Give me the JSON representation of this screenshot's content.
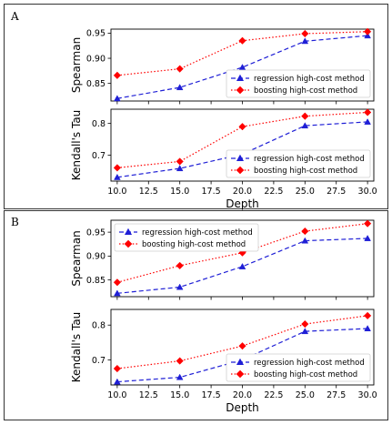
{
  "figure": {
    "panels": [
      {
        "letter": "A"
      },
      {
        "letter": "B"
      }
    ]
  },
  "colors": {
    "regression": "#1f1fd6",
    "boosting": "#ff0000"
  },
  "chart_data": [
    {
      "panel": "A",
      "type": "line",
      "ylabel": "Spearman",
      "xlabel": "",
      "xlim": [
        9.5,
        30.5
      ],
      "ylim": [
        0.815,
        0.958
      ],
      "xticks": [
        "10.0",
        "12.5",
        "15.0",
        "17.5",
        "20.0",
        "22.5",
        "25.0",
        "27.5",
        "30.0"
      ],
      "yticks": [
        "0.85",
        "0.90",
        "0.95"
      ],
      "show_xticklabels": false,
      "legend_loc": "lower-right",
      "x": [
        10,
        15,
        20,
        25,
        30
      ],
      "series": [
        {
          "name": "regression high-cost method",
          "style": "dashed",
          "marker": "triangle",
          "values": [
            0.82,
            0.842,
            0.882,
            0.934,
            0.945
          ]
        },
        {
          "name": "boosting high-cost method",
          "style": "dotted",
          "marker": "diamond",
          "values": [
            0.866,
            0.879,
            0.935,
            0.949,
            0.953
          ]
        }
      ]
    },
    {
      "panel": "A",
      "type": "line",
      "ylabel": "Kendall's Tau",
      "xlabel": "Depth",
      "xlim": [
        9.5,
        30.5
      ],
      "ylim": [
        0.618,
        0.845
      ],
      "xticks": [
        "10.0",
        "12.5",
        "15.0",
        "17.5",
        "20.0",
        "22.5",
        "25.0",
        "27.5",
        "30.0"
      ],
      "yticks": [
        "0.7",
        "0.8"
      ],
      "show_xticklabels": true,
      "legend_loc": "lower-right",
      "x": [
        10,
        15,
        20,
        25,
        30
      ],
      "series": [
        {
          "name": "regression high-cost method",
          "style": "dashed",
          "marker": "triangle",
          "values": [
            0.63,
            0.658,
            0.703,
            0.793,
            0.805
          ]
        },
        {
          "name": "boosting high-cost method",
          "style": "dotted",
          "marker": "diamond",
          "values": [
            0.66,
            0.68,
            0.79,
            0.823,
            0.835
          ]
        }
      ]
    },
    {
      "panel": "B",
      "type": "line",
      "ylabel": "Spearman",
      "xlabel": "",
      "xlim": [
        9.5,
        30.5
      ],
      "ylim": [
        0.815,
        0.975
      ],
      "xticks": [
        "10.0",
        "12.5",
        "15.0",
        "17.5",
        "20.0",
        "22.5",
        "25.0",
        "27.5",
        "30.0"
      ],
      "yticks": [
        "0.85",
        "0.90",
        "0.95"
      ],
      "show_xticklabels": false,
      "legend_loc": "upper-left",
      "x": [
        10,
        15,
        20,
        25,
        30
      ],
      "series": [
        {
          "name": "regression high-cost method",
          "style": "dashed",
          "marker": "triangle",
          "values": [
            0.822,
            0.835,
            0.878,
            0.932,
            0.937
          ]
        },
        {
          "name": "boosting high-cost method",
          "style": "dotted",
          "marker": "diamond",
          "values": [
            0.845,
            0.88,
            0.907,
            0.952,
            0.968
          ]
        }
      ]
    },
    {
      "panel": "B",
      "type": "line",
      "ylabel": "Kendall's Tau",
      "xlabel": "Depth",
      "xlim": [
        9.5,
        30.5
      ],
      "ylim": [
        0.628,
        0.845
      ],
      "xticks": [
        "10.0",
        "12.5",
        "15.0",
        "17.5",
        "20.0",
        "22.5",
        "25.0",
        "27.5",
        "30.0"
      ],
      "yticks": [
        "0.7",
        "0.8"
      ],
      "show_xticklabels": true,
      "legend_loc": "lower-right",
      "x": [
        10,
        15,
        20,
        25,
        30
      ],
      "series": [
        {
          "name": "regression high-cost method",
          "style": "dashed",
          "marker": "triangle",
          "values": [
            0.637,
            0.65,
            0.7,
            0.782,
            0.79
          ]
        },
        {
          "name": "boosting high-cost method",
          "style": "dotted",
          "marker": "diamond",
          "values": [
            0.675,
            0.697,
            0.74,
            0.803,
            0.827
          ]
        }
      ]
    }
  ]
}
